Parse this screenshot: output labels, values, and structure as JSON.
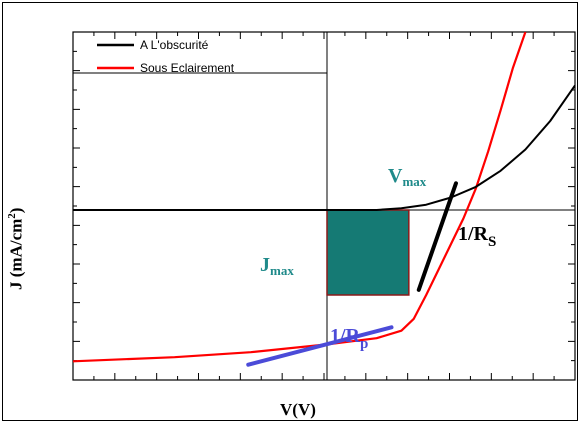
{
  "chart_data": {
    "type": "line",
    "xlabel": "V(V)",
    "ylabel": "J (mA/cm²)",
    "ylabel_main": "J (mA/cm",
    "ylabel_sup": "2",
    "ylabel_end": ")",
    "xlim": [
      -1,
      1
    ],
    "ylim": [
      -1,
      1
    ],
    "axes_ticks_labeled": false,
    "grid": false,
    "legend_placement": "top-left",
    "series": [
      {
        "name": "A L'obscurité",
        "color": "#000000",
        "x": [
          -1.0,
          0.0,
          0.2,
          0.3,
          0.4,
          0.5,
          0.6,
          0.7,
          0.8,
          0.9,
          1.0
        ],
        "y": [
          0.0,
          0.0,
          0.0,
          0.01,
          0.03,
          0.07,
          0.13,
          0.22,
          0.34,
          0.5,
          0.7
        ]
      },
      {
        "name": "Sous Eclairement",
        "color": "#ff0000",
        "x": [
          -1.0,
          -0.6,
          -0.3,
          0.0,
          0.2,
          0.3,
          0.35,
          0.4,
          0.45,
          0.5,
          0.55,
          0.6,
          0.65,
          0.7,
          0.75,
          0.8
        ],
        "y": [
          -0.89,
          -0.86,
          -0.83,
          -0.79,
          -0.76,
          -0.71,
          -0.64,
          -0.5,
          -0.35,
          -0.2,
          -0.05,
          0.12,
          0.33,
          0.56,
          0.8,
          1.0
        ]
      }
    ],
    "annotations": {
      "vmax": {
        "text": "V",
        "sub": "max",
        "color": "#1f8a8a"
      },
      "jmax": {
        "text": "J",
        "sub": "max",
        "color": "#1f8a8a"
      },
      "rs": {
        "text": "1/R",
        "sub": "S",
        "color": "#000000"
      },
      "rp": {
        "text": "1/R",
        "sub": "p",
        "color": "#4b4bd8"
      }
    },
    "max_power_rect": {
      "v": [
        0.0,
        0.33
      ],
      "j": [
        -0.5,
        0.0
      ],
      "fill": "#157a74",
      "stroke": "#8b1a1a"
    },
    "rs_tangent": {
      "x": [
        0.37,
        0.52
      ],
      "y": [
        -0.47,
        0.15
      ],
      "color": "#000000"
    },
    "rp_tangent": {
      "x": [
        -0.31,
        0.26
      ],
      "y": [
        -0.91,
        -0.69
      ],
      "color": "#4b4bd8"
    },
    "reference_lines": {
      "x0": 0,
      "y0": 0,
      "legend_box_bottom": 0.77
    }
  }
}
